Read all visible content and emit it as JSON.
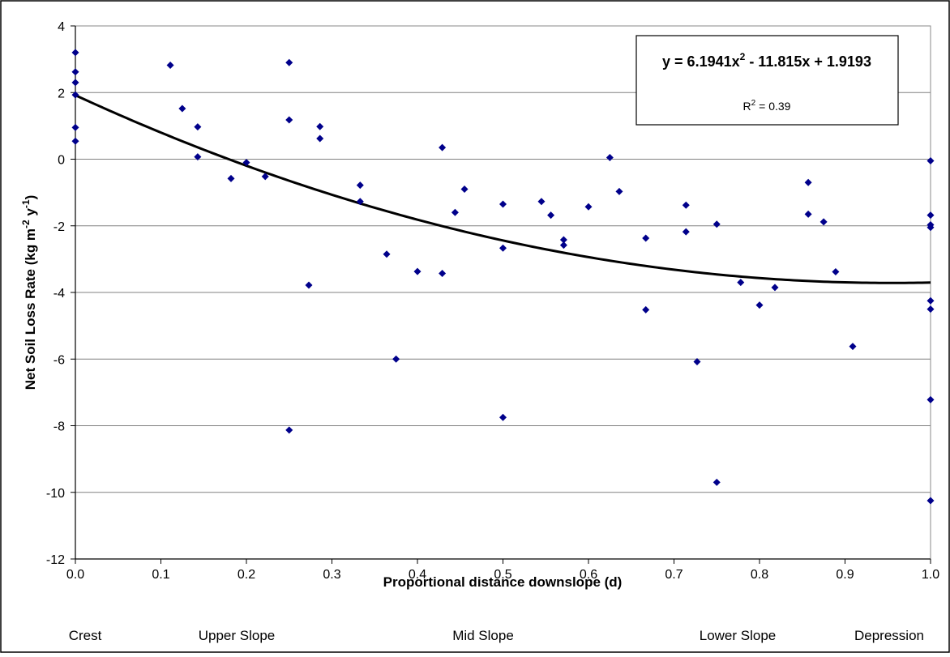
{
  "chart_data": {
    "type": "scatter",
    "xlabel": "Proportional distance downslope (d)",
    "ylabel": {
      "main": "Net Soil Loss Rate (kg m",
      "exp1": "-2",
      "mid": " y",
      "exp2": "-1",
      "end": ")"
    },
    "xlim": [
      0,
      1
    ],
    "ylim": [
      -12,
      4
    ],
    "x_ticks": [
      "0.0",
      "0.1",
      "0.2",
      "0.3",
      "0.4",
      "0.5",
      "0.6",
      "0.7",
      "0.8",
      "0.9",
      "1.0"
    ],
    "y_ticks": [
      "4",
      "2",
      "0",
      "-2",
      "-4",
      "-6",
      "-8",
      "-10",
      "-12"
    ],
    "grid": "horizontal",
    "marker_color": "#00008B",
    "trendline": {
      "type": "polynomial",
      "coefficients": [
        6.1941,
        -11.815,
        1.9193
      ],
      "color": "#000000"
    },
    "equation": {
      "lhs": "y = 6.1941x",
      "exp": "2",
      "rhs": " - 11.815x + 1.9193"
    },
    "r_squared": {
      "pre": "R",
      "exp": "2",
      "post": " = 0.39"
    },
    "categories": [
      "Crest",
      "Upper Slope",
      "Mid Slope",
      "Lower Slope",
      "Depression"
    ],
    "points": [
      [
        0.0,
        3.2
      ],
      [
        0.0,
        2.62
      ],
      [
        0.0,
        2.3
      ],
      [
        0.0,
        1.93
      ],
      [
        0.0,
        0.95
      ],
      [
        0.0,
        0.54
      ],
      [
        0.111,
        2.82
      ],
      [
        0.125,
        1.52
      ],
      [
        0.143,
        0.97
      ],
      [
        0.143,
        0.07
      ],
      [
        0.182,
        -0.58
      ],
      [
        0.2,
        -0.1
      ],
      [
        0.222,
        -0.52
      ],
      [
        0.25,
        2.9
      ],
      [
        0.25,
        1.18
      ],
      [
        0.25,
        -8.13
      ],
      [
        0.273,
        -3.78
      ],
      [
        0.286,
        0.98
      ],
      [
        0.286,
        0.62
      ],
      [
        0.333,
        -0.78
      ],
      [
        0.333,
        -1.27
      ],
      [
        0.364,
        -2.85
      ],
      [
        0.375,
        -6.0
      ],
      [
        0.4,
        -3.37
      ],
      [
        0.429,
        0.35
      ],
      [
        0.429,
        -3.43
      ],
      [
        0.444,
        -1.6
      ],
      [
        0.455,
        -0.9
      ],
      [
        0.5,
        -1.35
      ],
      [
        0.5,
        -2.67
      ],
      [
        0.5,
        -7.75
      ],
      [
        0.545,
        -1.27
      ],
      [
        0.556,
        -1.68
      ],
      [
        0.571,
        -2.42
      ],
      [
        0.571,
        -2.58
      ],
      [
        0.6,
        -1.43
      ],
      [
        0.625,
        0.05
      ],
      [
        0.636,
        -0.97
      ],
      [
        0.667,
        -2.37
      ],
      [
        0.667,
        -4.52
      ],
      [
        0.714,
        -1.38
      ],
      [
        0.714,
        -2.18
      ],
      [
        0.727,
        -6.08
      ],
      [
        0.75,
        -1.95
      ],
      [
        0.75,
        -9.7
      ],
      [
        0.778,
        -3.7
      ],
      [
        0.8,
        -4.38
      ],
      [
        0.818,
        -3.85
      ],
      [
        0.857,
        -0.7
      ],
      [
        0.857,
        -1.65
      ],
      [
        0.875,
        -1.88
      ],
      [
        0.889,
        -3.38
      ],
      [
        0.909,
        -5.62
      ],
      [
        1.0,
        -0.05
      ],
      [
        1.0,
        -1.68
      ],
      [
        1.0,
        -1.97
      ],
      [
        1.0,
        -2.05
      ],
      [
        1.0,
        -4.25
      ],
      [
        1.0,
        -4.5
      ],
      [
        1.0,
        -7.22
      ],
      [
        1.0,
        -10.25
      ]
    ]
  }
}
